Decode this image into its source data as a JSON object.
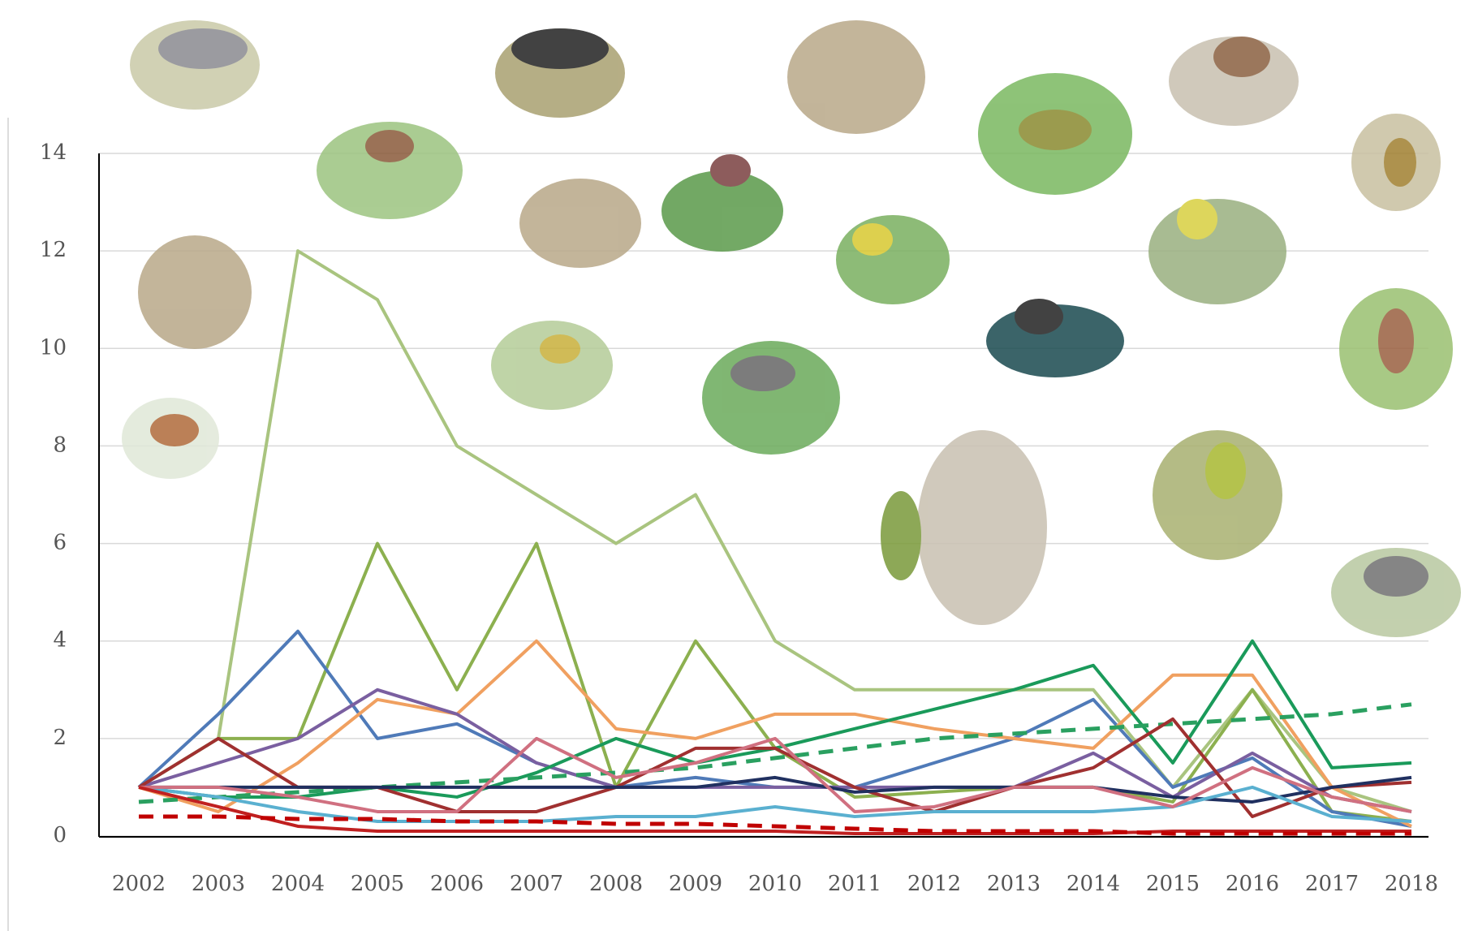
{
  "chart_data": {
    "type": "line",
    "categories": [
      "2002",
      "2003",
      "2004",
      "2005",
      "2006",
      "2007",
      "2008",
      "2009",
      "2010",
      "2011",
      "2012",
      "2013",
      "2014",
      "2015",
      "2016",
      "2017",
      "2018"
    ],
    "ylim": [
      0,
      14
    ],
    "yticks": [
      0,
      2,
      4,
      6,
      8,
      10,
      12,
      14
    ],
    "grid": true,
    "series": [
      {
        "color": "#a9c47f",
        "values": [
          1,
          2,
          12,
          11,
          8,
          7,
          6,
          7,
          4,
          3,
          3,
          3,
          3,
          1,
          3,
          1,
          0.5
        ]
      },
      {
        "color": "#8cb04f",
        "values": [
          1,
          2,
          2,
          6,
          3,
          6,
          1,
          4,
          1.8,
          0.8,
          0.9,
          1,
          1,
          0.7,
          3,
          0.5,
          0.3
        ]
      },
      {
        "color": "#4f7ab8",
        "values": [
          1,
          2.5,
          4.2,
          2,
          2.3,
          1.5,
          1,
          1.2,
          1,
          1,
          1.5,
          2,
          2.8,
          1,
          1.6,
          0.5,
          0.2
        ]
      },
      {
        "color": "#f0a060",
        "values": [
          1,
          0.5,
          1.5,
          2.8,
          2.5,
          4,
          2.2,
          2,
          2.5,
          2.5,
          2.2,
          2,
          1.8,
          3.3,
          3.3,
          1,
          0.2
        ]
      },
      {
        "color": "#7a5fa0",
        "values": [
          1,
          1.5,
          2,
          3,
          2.5,
          1.5,
          1,
          1,
          1,
          1,
          1,
          1,
          1.7,
          0.8,
          1.7,
          0.8,
          0.5
        ]
      },
      {
        "color": "#1a9a5a",
        "values": [
          1,
          0.8,
          0.8,
          1,
          0.8,
          1.3,
          2,
          1.5,
          1.8,
          2.2,
          2.6,
          3,
          3.5,
          1.5,
          4,
          1.4,
          1.5
        ]
      },
      {
        "color": "#2aa060",
        "dashed": true,
        "values": [
          0.7,
          0.8,
          0.9,
          1,
          1.1,
          1.2,
          1.3,
          1.4,
          1.6,
          1.8,
          2,
          2.1,
          2.2,
          2.3,
          2.4,
          2.5,
          2.7
        ]
      },
      {
        "color": "#a03030",
        "values": [
          1,
          2,
          1,
          1,
          0.5,
          0.5,
          1,
          1.8,
          1.8,
          1,
          0.5,
          1,
          1.4,
          2.4,
          0.4,
          1,
          1.1
        ]
      },
      {
        "color": "#203060",
        "values": [
          1,
          1,
          1,
          1,
          1,
          1,
          1,
          1,
          1.2,
          0.9,
          1,
          1,
          1,
          0.8,
          0.7,
          1,
          1.2
        ]
      },
      {
        "color": "#5ab0d0",
        "values": [
          1,
          0.8,
          0.5,
          0.3,
          0.3,
          0.3,
          0.4,
          0.4,
          0.6,
          0.4,
          0.5,
          0.5,
          0.5,
          0.6,
          1,
          0.4,
          0.3
        ]
      },
      {
        "color": "#d07080",
        "values": [
          1,
          1,
          0.8,
          0.5,
          0.5,
          2,
          1.2,
          1.5,
          2,
          0.5,
          0.6,
          1,
          1,
          0.6,
          1.4,
          0.8,
          0.5
        ]
      },
      {
        "color": "#c02020",
        "values": [
          1,
          0.6,
          0.2,
          0.1,
          0.1,
          0.1,
          0.1,
          0.1,
          0.1,
          0.05,
          0.05,
          0.05,
          0.05,
          0.1,
          0.1,
          0.1,
          0.1
        ]
      },
      {
        "color": "#c00000",
        "dashed": true,
        "values": [
          0.4,
          0.4,
          0.35,
          0.35,
          0.3,
          0.3,
          0.25,
          0.25,
          0.2,
          0.15,
          0.1,
          0.1,
          0.1,
          0.05,
          0.05,
          0.05,
          0.05
        ]
      }
    ]
  }
}
